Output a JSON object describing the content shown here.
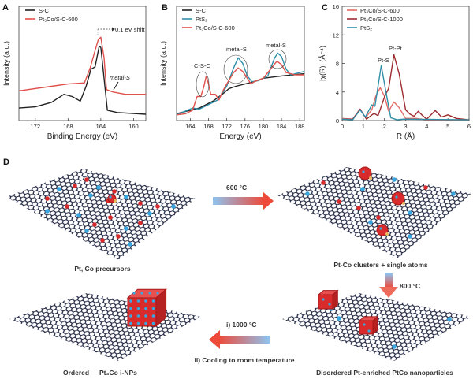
{
  "panel_labels": {
    "a": "A",
    "b": "B",
    "c": "C",
    "d": "D"
  },
  "chart_data": [
    {
      "type": "line",
      "panel": "A",
      "title": "",
      "xlabel": "Binding Energy (eV)",
      "ylabel": "Intensity (a.u.)",
      "xlim": [
        174,
        158.5
      ],
      "ylim": [
        0,
        100
      ],
      "xticks": [
        172,
        168,
        164,
        160
      ],
      "yticks": [],
      "legend": "top-left",
      "grid": false,
      "annotations": [
        "0.1 eV shift",
        "metal-S"
      ],
      "series": [
        {
          "name": "S-C",
          "color": "#222222",
          "x": [
            174,
            172,
            170,
            168.5,
            167.5,
            166.5,
            165.8,
            165.2,
            164.7,
            164.2,
            164,
            163.6,
            163.2,
            162,
            158.5
          ],
          "y": [
            11,
            12,
            16,
            23,
            21,
            17,
            30,
            45,
            47,
            65,
            64,
            37,
            9,
            7,
            5.5
          ]
        },
        {
          "name": "Pt₃Co/S-C-600",
          "color": "#e0504c",
          "x": [
            174,
            170,
            168,
            166,
            165.3,
            164.8,
            164.3,
            164,
            163.6,
            163.3,
            162.5,
            161,
            158.5
          ],
          "y": [
            26,
            30,
            32,
            33,
            46,
            59,
            71,
            73,
            55,
            27,
            25,
            23,
            23
          ]
        }
      ]
    },
    {
      "type": "line",
      "panel": "B",
      "title": "",
      "xlabel": "Energy (eV)",
      "ylabel": "Intensity (a.u.)",
      "xlim": [
        161,
        189
      ],
      "ylim": [
        0,
        100
      ],
      "xticks": [
        164,
        168,
        172,
        176,
        180,
        184,
        188
      ],
      "yticks": [],
      "legend": "top-left",
      "grid": false,
      "annotations": [
        "C-S-C",
        "metal-S",
        "metal-S"
      ],
      "series": [
        {
          "name": "S-C",
          "color": "#222222",
          "x": [
            161,
            166,
            169,
            171,
            172.5,
            174,
            176,
            178,
            180,
            184,
            189
          ],
          "y": [
            6,
            11,
            17,
            23,
            28,
            30,
            32,
            34,
            37,
            39,
            41
          ]
        },
        {
          "name": "PtS₂",
          "color": "#2f8fa8",
          "x": [
            161,
            164.5,
            166,
            168,
            170,
            172,
            173.5,
            174.5,
            175.5,
            176.5,
            177.5,
            179,
            181,
            182.5,
            183.2,
            184,
            185,
            186,
            189
          ],
          "y": [
            5,
            11,
            10,
            14,
            18,
            30,
            46,
            55,
            50,
            39,
            34,
            35,
            39,
            55,
            59,
            56,
            45,
            40,
            43
          ]
        },
        {
          "name": "Pt₃Co/S-C-600",
          "color": "#e0504c",
          "x": [
            161,
            163,
            164.5,
            165.5,
            166.3,
            167,
            167.5,
            168,
            168.5,
            169.5,
            170.3,
            171,
            172,
            173.5,
            174.5,
            175.5,
            176.5,
            177.3,
            178,
            180,
            182,
            183,
            184,
            185,
            187,
            189
          ],
          "y": [
            5,
            6,
            9,
            21,
            21,
            30,
            39,
            32,
            23,
            23,
            18,
            25,
            32,
            42,
            46,
            43,
            37,
            32,
            34,
            37,
            47,
            52,
            49,
            42,
            40,
            40
          ]
        }
      ]
    },
    {
      "type": "line",
      "panel": "C",
      "title": "",
      "xlabel": "R (Å)",
      "ylabel": "|χ(R)| (Å⁻⁴)",
      "xlim": [
        0,
        6
      ],
      "ylim": [
        0,
        16
      ],
      "xticks": [
        0,
        1,
        2,
        3,
        4,
        5,
        6
      ],
      "yticks": [
        0,
        4,
        8,
        12,
        16
      ],
      "legend": "top-left",
      "grid": false,
      "annotations": [
        "Pt-S",
        "Pt-Pt"
      ],
      "series": [
        {
          "name": "Pt₃Co/S-C-600",
          "color": "#e56a66",
          "x": [
            0,
            0.5,
            0.85,
            1.1,
            1.4,
            1.6,
            1.8,
            2.0,
            2.2,
            2.45,
            2.7,
            3.0,
            3.5,
            4.0,
            6.0
          ],
          "y": [
            0.3,
            0.2,
            1.6,
            0.4,
            1.5,
            3.5,
            4.6,
            3.4,
            1.3,
            2.6,
            1.8,
            0.3,
            0.3,
            0.1,
            0.1
          ]
        },
        {
          "name": "Pt₃Co/S-C-1000",
          "color": "#9c2a2e",
          "x": [
            0,
            0.5,
            0.85,
            1.15,
            1.5,
            1.7,
            2.0,
            2.2,
            2.45,
            2.7,
            3.0,
            3.2,
            3.4,
            3.6,
            3.8,
            4.0,
            4.4,
            4.7,
            5.0,
            5.4,
            6.0
          ],
          "y": [
            0.2,
            0.2,
            1.6,
            0.2,
            1.0,
            0.7,
            3.3,
            4.5,
            9.2,
            6.5,
            1.5,
            0.9,
            0.6,
            1.3,
            0.7,
            0.2,
            1.4,
            0.5,
            0.8,
            0.3,
            0.1
          ]
        },
        {
          "name": "PtS₂",
          "color": "#2f8fa8",
          "x": [
            0,
            0.5,
            0.85,
            1.1,
            1.4,
            1.55,
            1.85,
            2.1,
            2.3,
            2.6,
            2.9,
            6.0
          ],
          "y": [
            0.2,
            0.1,
            1.5,
            0.5,
            2.2,
            2.0,
            7.7,
            3.5,
            0.4,
            0.1,
            0.2,
            0.1
          ]
        }
      ]
    }
  ],
  "diagram": {
    "step_labels": {
      "precursors": "Pt, Co precursors",
      "clusters": "Pt-Co clusters + single atoms",
      "disordered": "Disordered Pt-enriched PtCo nanoparticles",
      "ordered_prefix": "Ordered",
      "ordered_formula": "Pt₃Co i-NPs"
    },
    "arrows": {
      "step1": "600 °C",
      "step2": "800 °C",
      "step3a": "i) 1000 °C",
      "step3b": "ii) Cooling to room temperature"
    },
    "colors": {
      "pt": "#d92b2b",
      "co": "#3aa6e0",
      "graphene": "#1f2540",
      "s": "#e8b860"
    }
  }
}
